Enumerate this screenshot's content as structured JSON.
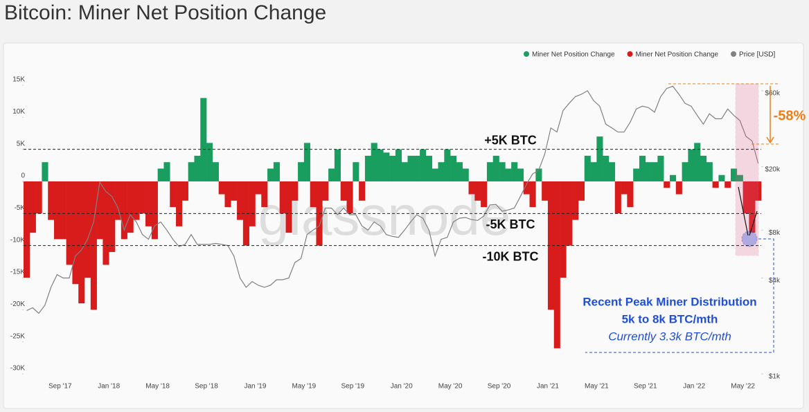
{
  "chart_data": {
    "type": "bar",
    "title": "Bitcoin: Miner Net Position Change",
    "watermark": "glassnode",
    "categories": [
      null,
      null,
      null,
      null,
      null,
      null,
      "Sep '17",
      null,
      null,
      null,
      null,
      null,
      null,
      null,
      "Jan '18",
      null,
      null,
      null,
      null,
      null,
      null,
      null,
      "May '18",
      null,
      null,
      null,
      null,
      null,
      null,
      null,
      "Sep '18",
      null,
      null,
      null,
      null,
      null,
      null,
      null,
      "Jan '19",
      null,
      null,
      null,
      null,
      null,
      null,
      null,
      "May '19",
      null,
      null,
      null,
      null,
      null,
      null,
      null,
      "Sep '19",
      null,
      null,
      null,
      null,
      null,
      null,
      null,
      "Jan '20",
      null,
      null,
      null,
      null,
      null,
      null,
      null,
      "May '20",
      null,
      null,
      null,
      null,
      null,
      null,
      null,
      "Sep '20",
      null,
      null,
      null,
      null,
      null,
      null,
      null,
      "Jan '21",
      null,
      null,
      null,
      null,
      null,
      null,
      null,
      "May '21",
      null,
      null,
      null,
      null,
      null,
      null,
      null,
      "Sep '21",
      null,
      null,
      null,
      null,
      null,
      null,
      null,
      "Jan '22",
      null,
      null,
      null,
      null,
      null,
      null,
      null,
      "May '22",
      null,
      null
    ],
    "series": [
      {
        "name": "Miner Net Position Change",
        "color": "#1a9e5f",
        "axis": "y",
        "values": [
          null,
          null,
          null,
          3000,
          null,
          null,
          null,
          null,
          null,
          null,
          null,
          null,
          null,
          null,
          null,
          null,
          null,
          null,
          null,
          null,
          null,
          null,
          2000,
          3000,
          null,
          null,
          null,
          3000,
          4000,
          13000,
          6000,
          3000,
          null,
          null,
          null,
          null,
          null,
          null,
          null,
          null,
          2000,
          3000,
          null,
          null,
          null,
          3000,
          6000,
          null,
          null,
          null,
          2000,
          5000,
          null,
          null,
          3000,
          null,
          4000,
          6000,
          5000,
          4500,
          4000,
          5000,
          3000,
          4000,
          4000,
          5000,
          4000,
          2000,
          3000,
          5000,
          4000,
          3000,
          2000,
          null,
          null,
          null,
          3000,
          4000,
          3000,
          2000,
          3000,
          2000,
          null,
          null,
          2000,
          null,
          null,
          null,
          null,
          null,
          null,
          null,
          4000,
          3000,
          7000,
          4000,
          3000,
          null,
          null,
          null,
          2000,
          4000,
          3000,
          3000,
          4000,
          null,
          1000,
          null,
          3000,
          5000,
          6000,
          4000,
          3000,
          null,
          1000,
          null,
          2000,
          1000,
          null,
          null,
          null
        ]
      },
      {
        "name": "Miner Net Position Change",
        "color": "#d81c1c",
        "axis": "y",
        "values": [
          -15000,
          -8000,
          -5000,
          null,
          -6000,
          -9000,
          -9000,
          -13000,
          -16000,
          -19000,
          -15000,
          -20000,
          -9000,
          -13000,
          -11000,
          -6000,
          -9000,
          -8000,
          -6000,
          -5000,
          -7000,
          -9000,
          null,
          null,
          -4000,
          -7000,
          -3000,
          null,
          null,
          null,
          null,
          null,
          -2000,
          -4000,
          -3000,
          -6000,
          -10000,
          -7000,
          -2000,
          -4000,
          null,
          null,
          -5000,
          -8000,
          -3000,
          null,
          null,
          -4000,
          -10000,
          -3000,
          null,
          null,
          -3000,
          -5000,
          null,
          -3000,
          null,
          null,
          null,
          null,
          null,
          null,
          null,
          null,
          null,
          null,
          null,
          null,
          null,
          null,
          null,
          null,
          null,
          -2000,
          -3000,
          -4000,
          null,
          null,
          null,
          null,
          null,
          null,
          -2000,
          -4000,
          null,
          -3000,
          -20000,
          -26000,
          -15000,
          -10000,
          -6000,
          -3000,
          null,
          null,
          null,
          null,
          null,
          -5000,
          -2000,
          -4000,
          null,
          null,
          null,
          null,
          null,
          -1000,
          null,
          -2000,
          null,
          null,
          null,
          null,
          null,
          -1000,
          null,
          -1000,
          null,
          null,
          -5000,
          -8000,
          -3000
        ]
      },
      {
        "name": "Price [USD]",
        "color": "#808080",
        "axis": "y2",
        "values": [
          2500,
          2600,
          2400,
          2700,
          3500,
          4200,
          4000,
          4000,
          5500,
          6000,
          7000,
          9000,
          16000,
          14000,
          13000,
          11000,
          8000,
          10000,
          9000,
          7500,
          7000,
          8500,
          9000,
          8000,
          7000,
          6300,
          6500,
          7500,
          6500,
          6500,
          6500,
          6600,
          6500,
          6400,
          5500,
          4000,
          3500,
          3800,
          3600,
          3500,
          3600,
          3900,
          3900,
          4000,
          5000,
          5300,
          7500,
          8000,
          8500,
          11000,
          11000,
          10000,
          11000,
          10000,
          10000,
          8500,
          8000,
          9000,
          8500,
          7500,
          7300,
          7200,
          8000,
          9000,
          10000,
          9500,
          8000,
          5500,
          7000,
          7200,
          9000,
          9500,
          9600,
          9300,
          9200,
          9800,
          11500,
          11600,
          10500,
          10700,
          11000,
          13000,
          15500,
          18000,
          19000,
          24000,
          35000,
          33000,
          45000,
          50000,
          55000,
          57000,
          60000,
          52000,
          48000,
          37000,
          35000,
          33000,
          33000,
          38000,
          46000,
          48000,
          47000,
          44000,
          55000,
          62000,
          64000,
          57000,
          50000,
          48000,
          42000,
          37000,
          43000,
          40000,
          40000,
          46000,
          42000,
          39000,
          31000,
          29000,
          21000
        ]
      }
    ],
    "ylim": [
      -30000,
      15000
    ],
    "yticks": [
      {
        "value": 15000,
        "label": "15K"
      },
      {
        "value": 10000,
        "label": "10K"
      },
      {
        "value": 5000,
        "label": "5K"
      },
      0,
      {
        "value": -5000,
        "label": "-5K"
      },
      {
        "value": -10000,
        "label": "-10K"
      },
      {
        "value": -15000,
        "label": "-15K"
      },
      {
        "value": -20000,
        "label": "-20K"
      },
      {
        "value": -25000,
        "label": "-25K"
      },
      {
        "value": -30000,
        "label": "-30K"
      }
    ],
    "y2lim": [
      1000,
      65000
    ],
    "y2_log": true,
    "y2ticks": [
      {
        "value": 60000,
        "label": "$60k"
      },
      {
        "value": 20000,
        "label": "$20k"
      },
      {
        "value": 8000,
        "label": "$8k"
      },
      {
        "value": 4000,
        "label": "$4k"
      },
      {
        "value": 1000,
        "label": "$1k"
      }
    ],
    "reference_lines": [
      {
        "value": 5000,
        "label": "+5K BTC"
      },
      {
        "value": -5000,
        "label": "-5K BTC"
      },
      {
        "value": -10000,
        "label": "-10K BTC"
      }
    ],
    "legend": "top-right",
    "annotations": {
      "drawdown": "-58%",
      "callout_title": "Recent Peak Miner Distribution",
      "callout_line": "5k to 8k BTC/mth",
      "callout_note": "Currently 3.3k BTC/mth"
    }
  }
}
